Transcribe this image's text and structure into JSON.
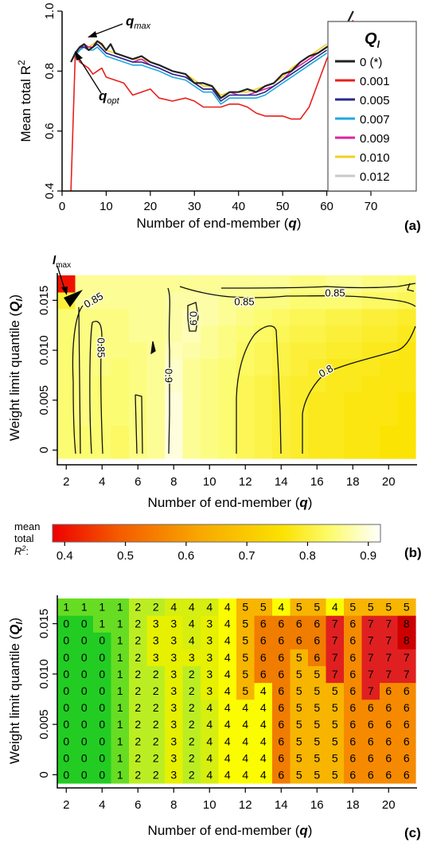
{
  "chart_data": [
    {
      "type": "line",
      "panel_label": "(a)",
      "xlabel_prefix": "Number of end-member (",
      "xlabel_var": "q",
      "xlabel_suffix": ")",
      "ylabel_prefix": "Mean total R",
      "ylabel_sup": "2",
      "xlim": [
        0,
        70
      ],
      "ylim": [
        0.4,
        1.0
      ],
      "xticks": [
        0,
        10,
        20,
        30,
        40,
        50,
        60,
        70
      ],
      "yticks": [
        0.4,
        0.6,
        0.8,
        1.0
      ],
      "ytick_labels": [
        "0.4",
        "0.6",
        "0.8",
        "1.0"
      ],
      "legend_title": "Q",
      "legend_title_sub": "l",
      "legend_placement": "right",
      "annotations": {
        "qmax": {
          "main": "q",
          "sub": "max"
        },
        "qopt": {
          "main": "q",
          "sub": "opt"
        }
      },
      "series": [
        {
          "name": "0 (*)",
          "color": "#222222",
          "x": [
            2,
            3,
            4,
            5,
            6,
            7,
            8,
            9,
            10,
            11,
            12,
            14,
            16,
            18,
            20,
            22,
            25,
            28,
            30,
            32,
            34,
            36,
            38,
            40,
            42,
            44,
            46,
            48,
            50,
            52,
            54,
            56,
            58,
            60,
            62,
            64,
            66
          ],
          "y": [
            0.83,
            0.86,
            0.88,
            0.89,
            0.87,
            0.88,
            0.9,
            0.89,
            0.87,
            0.89,
            0.86,
            0.85,
            0.84,
            0.85,
            0.83,
            0.82,
            0.8,
            0.79,
            0.76,
            0.76,
            0.75,
            0.71,
            0.73,
            0.73,
            0.74,
            0.73,
            0.75,
            0.76,
            0.79,
            0.8,
            0.83,
            0.85,
            0.86,
            0.88,
            0.9,
            0.94,
            1.0
          ]
        },
        {
          "name": "0.001",
          "color": "#e8201c",
          "x": [
            2,
            3,
            4,
            5,
            6,
            7,
            8,
            9,
            10,
            12,
            14,
            16,
            18,
            20,
            22,
            25,
            28,
            30,
            32,
            34,
            36,
            38,
            40,
            42,
            44,
            46,
            48,
            50,
            52,
            54,
            56,
            58,
            60,
            62,
            64,
            66
          ],
          "y": [
            0.4,
            0.86,
            0.83,
            0.82,
            0.81,
            0.79,
            0.8,
            0.81,
            0.78,
            0.77,
            0.76,
            0.72,
            0.73,
            0.74,
            0.71,
            0.7,
            0.71,
            0.7,
            0.68,
            0.68,
            0.68,
            0.69,
            0.69,
            0.68,
            0.66,
            0.65,
            0.65,
            0.65,
            0.64,
            0.64,
            0.68,
            0.76,
            0.84,
            0.9,
            0.93,
            0.97
          ]
        },
        {
          "name": "0.005",
          "color": "#2a2a8c",
          "x": [
            3,
            4,
            5,
            6,
            7,
            8,
            10,
            12,
            14,
            16,
            18,
            20,
            22,
            25,
            28,
            30,
            32,
            34,
            36,
            38,
            40,
            42,
            44,
            46,
            48,
            50,
            52,
            54,
            56,
            58,
            60
          ],
          "y": [
            0.86,
            0.88,
            0.88,
            0.87,
            0.88,
            0.89,
            0.86,
            0.85,
            0.84,
            0.83,
            0.83,
            0.82,
            0.81,
            0.79,
            0.78,
            0.76,
            0.74,
            0.74,
            0.7,
            0.72,
            0.72,
            0.72,
            0.72,
            0.73,
            0.75,
            0.77,
            0.79,
            0.81,
            0.83,
            0.85,
            0.87
          ]
        },
        {
          "name": "0.007",
          "color": "#1ea8e0",
          "x": [
            3,
            4,
            5,
            6,
            7,
            8,
            10,
            12,
            14,
            16,
            18,
            20,
            22,
            25,
            28,
            30,
            32,
            34,
            36,
            38,
            40,
            42,
            44,
            46,
            48,
            50,
            52,
            54,
            56,
            58,
            60
          ],
          "y": [
            0.85,
            0.87,
            0.88,
            0.87,
            0.87,
            0.88,
            0.85,
            0.84,
            0.83,
            0.82,
            0.82,
            0.81,
            0.8,
            0.78,
            0.77,
            0.75,
            0.73,
            0.73,
            0.69,
            0.71,
            0.71,
            0.71,
            0.71,
            0.72,
            0.74,
            0.76,
            0.78,
            0.8,
            0.82,
            0.84,
            0.86
          ]
        },
        {
          "name": "0.009",
          "color": "#e020a0",
          "x": [
            3,
            4,
            5,
            6,
            7,
            8,
            10,
            12,
            14,
            16,
            18,
            20,
            22,
            25,
            28,
            30,
            32,
            34,
            36,
            38,
            40,
            42,
            44,
            46,
            48,
            50,
            52,
            54,
            56,
            58,
            60
          ],
          "y": [
            0.86,
            0.87,
            0.89,
            0.88,
            0.88,
            0.89,
            0.86,
            0.85,
            0.84,
            0.83,
            0.84,
            0.82,
            0.81,
            0.79,
            0.78,
            0.76,
            0.74,
            0.74,
            0.71,
            0.73,
            0.72,
            0.72,
            0.73,
            0.74,
            0.75,
            0.77,
            0.8,
            0.82,
            0.84,
            0.86,
            0.88
          ]
        },
        {
          "name": "0.010",
          "color": "#f0d020",
          "x": [
            3,
            4,
            5,
            6,
            7,
            8,
            10,
            12,
            14,
            16,
            18,
            20,
            22,
            25,
            28,
            30,
            32,
            34,
            36,
            38,
            40,
            42,
            44,
            46,
            48,
            50,
            52,
            54,
            56,
            58,
            60
          ],
          "y": [
            0.86,
            0.88,
            0.89,
            0.88,
            0.89,
            0.9,
            0.87,
            0.86,
            0.85,
            0.84,
            0.84,
            0.83,
            0.82,
            0.8,
            0.79,
            0.77,
            0.75,
            0.75,
            0.72,
            0.73,
            0.73,
            0.73,
            0.74,
            0.75,
            0.76,
            0.78,
            0.81,
            0.83,
            0.85,
            0.87,
            0.89
          ]
        },
        {
          "name": "0.012",
          "color": "#c8c8c8",
          "x": [
            3,
            4,
            5,
            6,
            7,
            8,
            10,
            12,
            14,
            16,
            18,
            20,
            22,
            25,
            28,
            30,
            32,
            34,
            36,
            38,
            40,
            42,
            44,
            46,
            48,
            50,
            52,
            54,
            56,
            58,
            60
          ],
          "y": [
            0.85,
            0.87,
            0.88,
            0.87,
            0.88,
            0.89,
            0.86,
            0.85,
            0.84,
            0.83,
            0.83,
            0.82,
            0.81,
            0.79,
            0.78,
            0.76,
            0.74,
            0.74,
            0.71,
            0.72,
            0.72,
            0.72,
            0.73,
            0.74,
            0.75,
            0.77,
            0.8,
            0.82,
            0.84,
            0.86,
            0.88
          ]
        }
      ]
    },
    {
      "type": "heatmap",
      "panel_label": "(b)",
      "xlabel_prefix": "Number of end-member (",
      "xlabel_var": "q",
      "xlabel_suffix": ")",
      "ylabel_prefix": "Weight limit quantile (",
      "ylabel_var": "Q",
      "ylabel_sub": "l",
      "ylabel_suffix": ")",
      "x": [
        2,
        3,
        4,
        5,
        6,
        7,
        8,
        9,
        10,
        11,
        12,
        13,
        14,
        15,
        16,
        17,
        18,
        19,
        20,
        21
      ],
      "y": [
        0,
        0.0017,
        0.0033,
        0.005,
        0.0067,
        0.0083,
        0.01,
        0.0117,
        0.0133,
        0.015,
        0.0167
      ],
      "xticks": [
        2,
        4,
        6,
        8,
        10,
        12,
        14,
        16,
        18,
        20
      ],
      "yticks": [
        0,
        0.005,
        0.01,
        0.015
      ],
      "ytick_labels": [
        "0",
        "0.005",
        "0.010",
        "0.015"
      ],
      "contour_labels": [
        "0.85",
        "0.85",
        "0.85",
        "0.85",
        "0.9",
        "0.9",
        "0.8"
      ],
      "marker_main": "l",
      "marker_sub": "max",
      "colorbar": {
        "label_lines": [
          "mean",
          "total"
        ],
        "label_r": "R",
        "label_sup": "2",
        "label_colon": ":",
        "range": [
          0.38,
          0.92
        ],
        "ticks": [
          0.4,
          0.5,
          0.6,
          0.7,
          0.8,
          0.9
        ],
        "tick_labels": [
          "0.4",
          "0.5",
          "0.6",
          "0.7",
          "0.8",
          "0.9"
        ]
      },
      "z": [
        [
          0.84,
          0.84,
          0.84,
          0.83,
          0.85,
          0.86,
          0.9,
          0.86,
          0.85,
          0.84,
          0.82,
          0.81,
          0.8,
          0.79,
          0.78,
          0.78,
          0.77,
          0.77,
          0.76,
          0.76
        ],
        [
          0.84,
          0.84,
          0.84,
          0.83,
          0.85,
          0.86,
          0.9,
          0.86,
          0.85,
          0.84,
          0.82,
          0.81,
          0.8,
          0.79,
          0.78,
          0.78,
          0.77,
          0.77,
          0.76,
          0.76
        ],
        [
          0.84,
          0.85,
          0.84,
          0.84,
          0.85,
          0.86,
          0.9,
          0.86,
          0.85,
          0.84,
          0.82,
          0.81,
          0.8,
          0.79,
          0.78,
          0.78,
          0.77,
          0.77,
          0.77,
          0.76
        ],
        [
          0.84,
          0.85,
          0.84,
          0.84,
          0.85,
          0.86,
          0.9,
          0.86,
          0.85,
          0.84,
          0.82,
          0.81,
          0.8,
          0.79,
          0.78,
          0.78,
          0.77,
          0.77,
          0.77,
          0.76
        ],
        [
          0.84,
          0.85,
          0.84,
          0.84,
          0.85,
          0.86,
          0.89,
          0.86,
          0.85,
          0.84,
          0.82,
          0.81,
          0.8,
          0.79,
          0.79,
          0.78,
          0.78,
          0.77,
          0.77,
          0.77
        ],
        [
          0.84,
          0.85,
          0.85,
          0.84,
          0.85,
          0.86,
          0.89,
          0.86,
          0.85,
          0.84,
          0.83,
          0.82,
          0.81,
          0.8,
          0.79,
          0.78,
          0.78,
          0.78,
          0.77,
          0.77
        ],
        [
          0.84,
          0.85,
          0.85,
          0.85,
          0.85,
          0.86,
          0.88,
          0.87,
          0.86,
          0.85,
          0.83,
          0.82,
          0.81,
          0.8,
          0.8,
          0.79,
          0.79,
          0.78,
          0.78,
          0.77
        ],
        [
          0.84,
          0.85,
          0.85,
          0.85,
          0.86,
          0.86,
          0.87,
          0.88,
          0.86,
          0.85,
          0.84,
          0.83,
          0.82,
          0.81,
          0.81,
          0.8,
          0.8,
          0.79,
          0.79,
          0.78
        ],
        [
          0.84,
          0.85,
          0.85,
          0.85,
          0.86,
          0.86,
          0.87,
          0.88,
          0.87,
          0.86,
          0.85,
          0.84,
          0.83,
          0.82,
          0.82,
          0.81,
          0.81,
          0.8,
          0.8,
          0.79
        ],
        [
          0.8,
          0.86,
          0.86,
          0.86,
          0.86,
          0.86,
          0.87,
          0.87,
          0.87,
          0.86,
          0.86,
          0.85,
          0.85,
          0.84,
          0.84,
          0.84,
          0.84,
          0.83,
          0.83,
          0.82
        ],
        [
          0.4,
          0.86,
          0.86,
          0.86,
          0.86,
          0.86,
          0.86,
          0.86,
          0.86,
          0.86,
          0.86,
          0.86,
          0.86,
          0.85,
          0.85,
          0.86,
          0.86,
          0.85,
          0.85,
          0.84
        ]
      ]
    },
    {
      "type": "heatmap",
      "panel_label": "(c)",
      "xlabel_prefix": "Number of end-member (",
      "xlabel_var": "q",
      "xlabel_suffix": ")",
      "ylabel_prefix": "Weight limit quantile (",
      "ylabel_var": "Q",
      "ylabel_sub": "l",
      "ylabel_suffix": ")",
      "x": [
        2,
        3,
        4,
        5,
        6,
        7,
        8,
        9,
        10,
        11,
        12,
        13,
        14,
        15,
        16,
        17,
        18,
        19,
        20,
        21
      ],
      "y": [
        0,
        0.0017,
        0.0033,
        0.005,
        0.0067,
        0.0083,
        0.01,
        0.0117,
        0.0133,
        0.015,
        0.0167
      ],
      "xticks": [
        2,
        4,
        6,
        8,
        10,
        12,
        14,
        16,
        18,
        20
      ],
      "yticks": [
        0,
        0.005,
        0.01,
        0.015
      ],
      "ytick_labels": [
        "0",
        "0.005",
        "0.010",
        "0.015"
      ],
      "values": [
        [
          0,
          0,
          0,
          1,
          2,
          2,
          3,
          2,
          4,
          4,
          4,
          4,
          6,
          5,
          5,
          5,
          6,
          6,
          6,
          6
        ],
        [
          0,
          0,
          0,
          1,
          2,
          2,
          3,
          2,
          4,
          4,
          4,
          4,
          6,
          5,
          5,
          5,
          6,
          6,
          6,
          6
        ],
        [
          0,
          0,
          0,
          1,
          2,
          2,
          3,
          2,
          4,
          4,
          4,
          4,
          6,
          5,
          5,
          5,
          6,
          6,
          6,
          6
        ],
        [
          0,
          0,
          0,
          1,
          2,
          2,
          3,
          2,
          4,
          4,
          4,
          4,
          6,
          5,
          5,
          5,
          6,
          6,
          6,
          6
        ],
        [
          0,
          0,
          0,
          1,
          2,
          2,
          3,
          2,
          4,
          4,
          4,
          4,
          6,
          5,
          5,
          5,
          6,
          6,
          6,
          6
        ],
        [
          0,
          0,
          0,
          1,
          2,
          2,
          3,
          2,
          3,
          4,
          5,
          4,
          6,
          5,
          5,
          5,
          6,
          7,
          6,
          6
        ],
        [
          0,
          0,
          0,
          1,
          2,
          2,
          3,
          2,
          3,
          4,
          5,
          6,
          6,
          5,
          5,
          7,
          6,
          7,
          7,
          7
        ],
        [
          0,
          0,
          0,
          1,
          2,
          3,
          3,
          3,
          3,
          4,
          5,
          6,
          6,
          5,
          6,
          7,
          6,
          7,
          7,
          7
        ],
        [
          0,
          0,
          0,
          1,
          2,
          3,
          3,
          4,
          3,
          4,
          5,
          6,
          6,
          6,
          6,
          7,
          6,
          7,
          7,
          8
        ],
        [
          0,
          0,
          1,
          1,
          2,
          3,
          3,
          4,
          3,
          4,
          5,
          6,
          6,
          6,
          6,
          7,
          6,
          7,
          7,
          8
        ],
        [
          1,
          1,
          1,
          1,
          2,
          2,
          4,
          4,
          4,
          4,
          5,
          5,
          4,
          5,
          5,
          4,
          5,
          5,
          5,
          5
        ]
      ]
    }
  ]
}
